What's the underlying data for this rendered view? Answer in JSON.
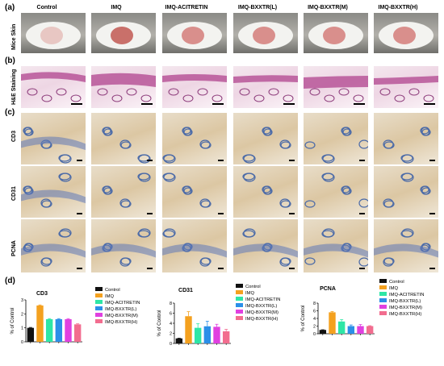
{
  "panels": {
    "a": "(a)",
    "b": "(b)",
    "c": "(c)",
    "d": "(d)"
  },
  "columns": [
    "Control",
    "IMQ",
    "IMQ-ACITRETIN",
    "IMQ-BXXTR(L)",
    "IMQ-BXXTR(M)",
    "IMQ-BXXTR(H)"
  ],
  "row_labels": {
    "mice": "Mice Skin",
    "he": "H&E Staining",
    "cd3": "CD3",
    "cd31": "CD31",
    "pcna": "PCNA"
  },
  "colors": {
    "Control": "#111111",
    "IMQ": "#f4a11f",
    "IMQ-ACITRETIN": "#2ee6a6",
    "IMQ-BXXTR(L)": "#2b8fe8",
    "IMQ-BXXTR(M)": "#e040e0",
    "IMQ-BXXTR(H)": "#f26d8f"
  },
  "chart_data": [
    {
      "type": "bar",
      "title": "CD3",
      "ylabel": "% of Control",
      "categories": [
        "Control",
        "IMQ",
        "IMQ-ACITRETIN",
        "IMQ-BXXTR(L)",
        "IMQ-BXXTR(M)",
        "IMQ-BXXTR(H)"
      ],
      "values": [
        1.0,
        2.6,
        1.62,
        1.62,
        1.62,
        1.25
      ],
      "errors": [
        0.03,
        0.04,
        0.04,
        0.04,
        0.04,
        0.04
      ],
      "ylim": [
        0,
        3
      ],
      "yticks": [
        0,
        1,
        2,
        3
      ],
      "legend": "right"
    },
    {
      "type": "bar",
      "title": "CD31",
      "ylabel": "% of Control",
      "categories": [
        "Control",
        "IMQ",
        "IMQ-ACITRETIN",
        "IMQ-BXXTR(L)",
        "IMQ-BXXTR(M)",
        "IMQ-BXXTR(H)"
      ],
      "values": [
        1.0,
        5.4,
        3.1,
        3.4,
        3.3,
        2.4
      ],
      "errors": [
        0.05,
        0.9,
        0.8,
        1.0,
        0.5,
        0.4
      ],
      "ylim": [
        0,
        8
      ],
      "yticks": [
        0,
        2,
        4,
        6,
        8
      ],
      "legend": "top-right"
    },
    {
      "type": "bar",
      "title": "PCNA",
      "ylabel": "% of Control",
      "categories": [
        "Control",
        "IMQ",
        "IMQ-ACITRETIN",
        "IMQ-BXXTR(L)",
        "IMQ-BXXTR(M)",
        "IMQ-BXXTR(H)"
      ],
      "values": [
        1.0,
        5.6,
        3.2,
        2.0,
        2.0,
        2.0
      ],
      "errors": [
        0.05,
        0.2,
        0.5,
        0.3,
        0.4,
        0.1
      ],
      "ylim": [
        0,
        8
      ],
      "yticks": [
        0,
        2,
        4,
        6,
        8
      ],
      "legend": "top-right"
    }
  ]
}
